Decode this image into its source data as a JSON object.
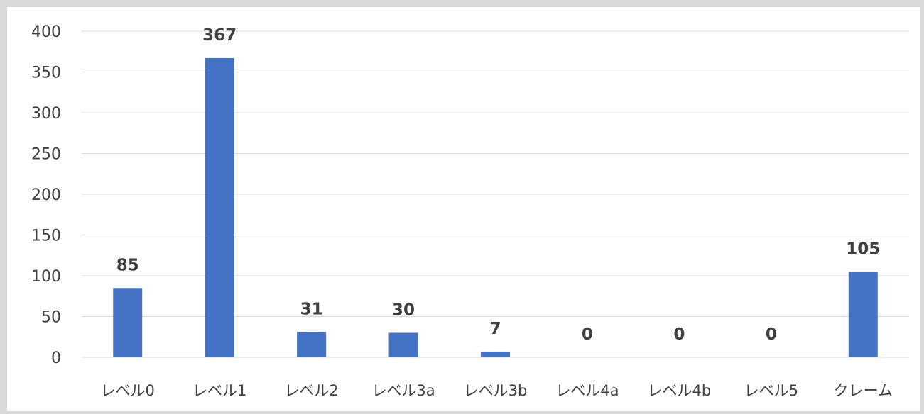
{
  "chart_data": {
    "type": "bar",
    "categories": [
      "レベル0",
      "レベル1",
      "レベル2",
      "レベル3a",
      "レベル3b",
      "レベル4a",
      "レベル4b",
      "レベル5",
      "クレーム"
    ],
    "values": [
      85,
      367,
      31,
      30,
      7,
      0,
      0,
      0,
      105
    ],
    "data_labels": [
      "85",
      "367",
      "31",
      "30",
      "7",
      "0",
      "0",
      "0",
      "105"
    ],
    "title": "",
    "xlabel": "",
    "ylabel": "",
    "ylim": [
      0,
      400
    ],
    "yticks": [
      0,
      50,
      100,
      150,
      200,
      250,
      300,
      350,
      400
    ],
    "grid": true,
    "legend": "none",
    "colors": {
      "bar": "#4472c4",
      "grid": "#d9d9d9",
      "text": "#404040",
      "frame": "#d9d9d9"
    }
  }
}
